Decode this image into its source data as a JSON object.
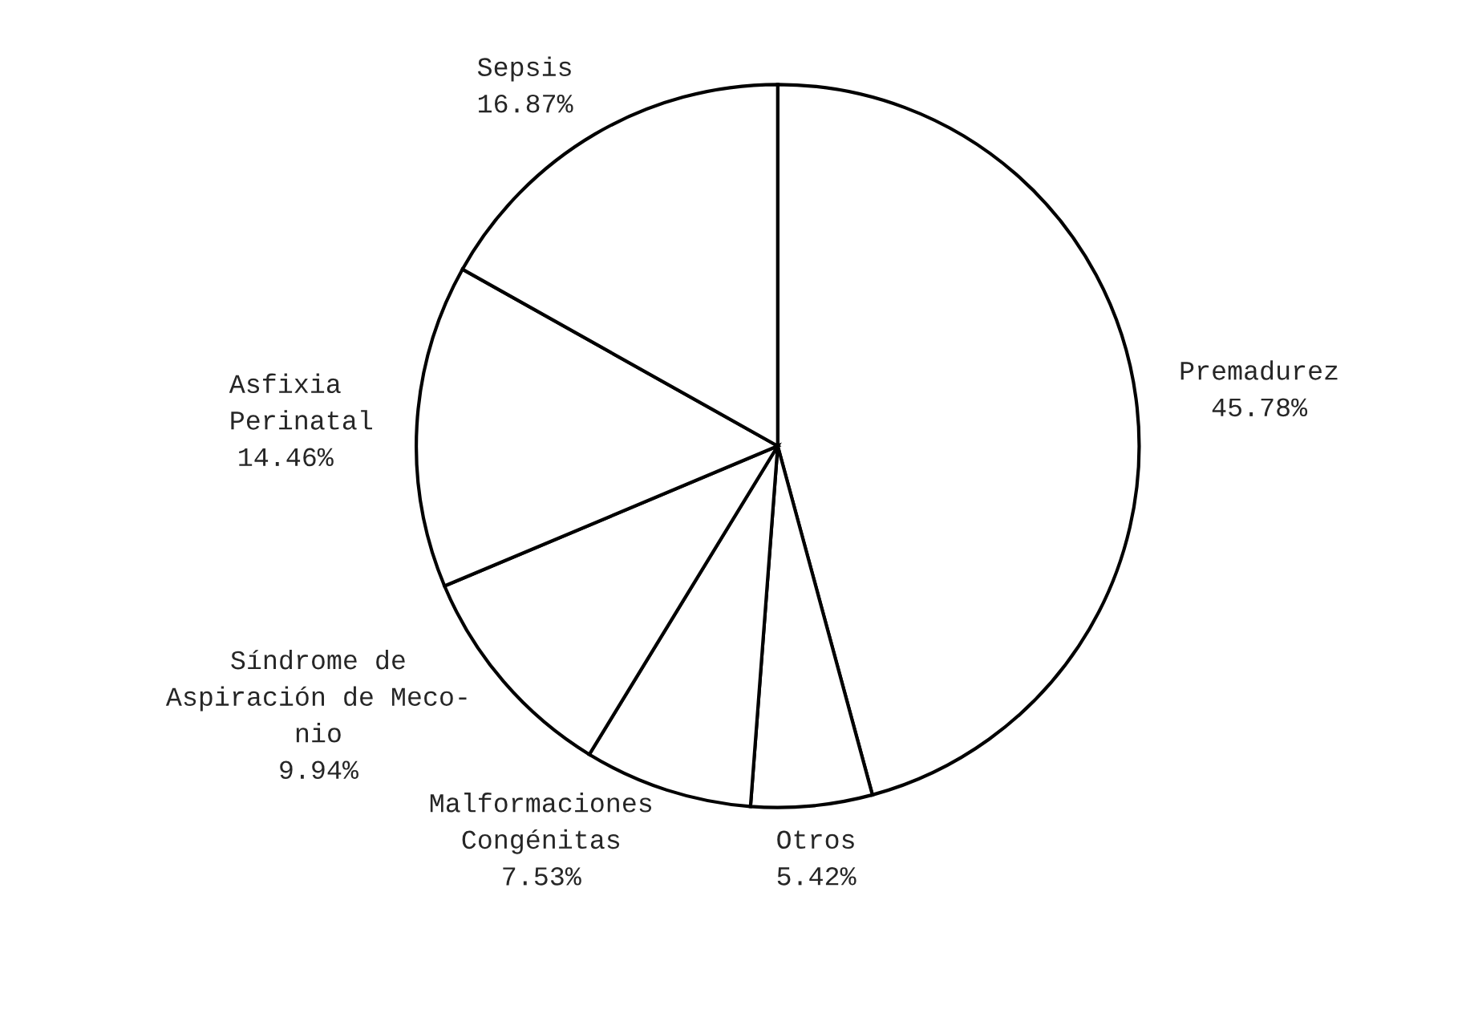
{
  "chart_data": {
    "type": "pie",
    "categories": [
      "Premadurez",
      "Otros",
      "Malformaciones\nCongénitas",
      "Síndrome de\nAspiración de Meco-\nnio",
      "Asfixia\n  Perinatal",
      "Sepsis"
    ],
    "values": [
      45.78,
      5.42,
      7.53,
      9.94,
      14.46,
      16.87
    ],
    "value_labels": [
      "45.78%",
      "5.42%",
      "7.53%",
      "9.94%",
      "14.46%",
      "16.87%"
    ],
    "colors": [
      "#ffffff",
      "#ffffff",
      "#ffffff",
      "#ffffff",
      "#ffffff",
      "#ffffff"
    ]
  }
}
